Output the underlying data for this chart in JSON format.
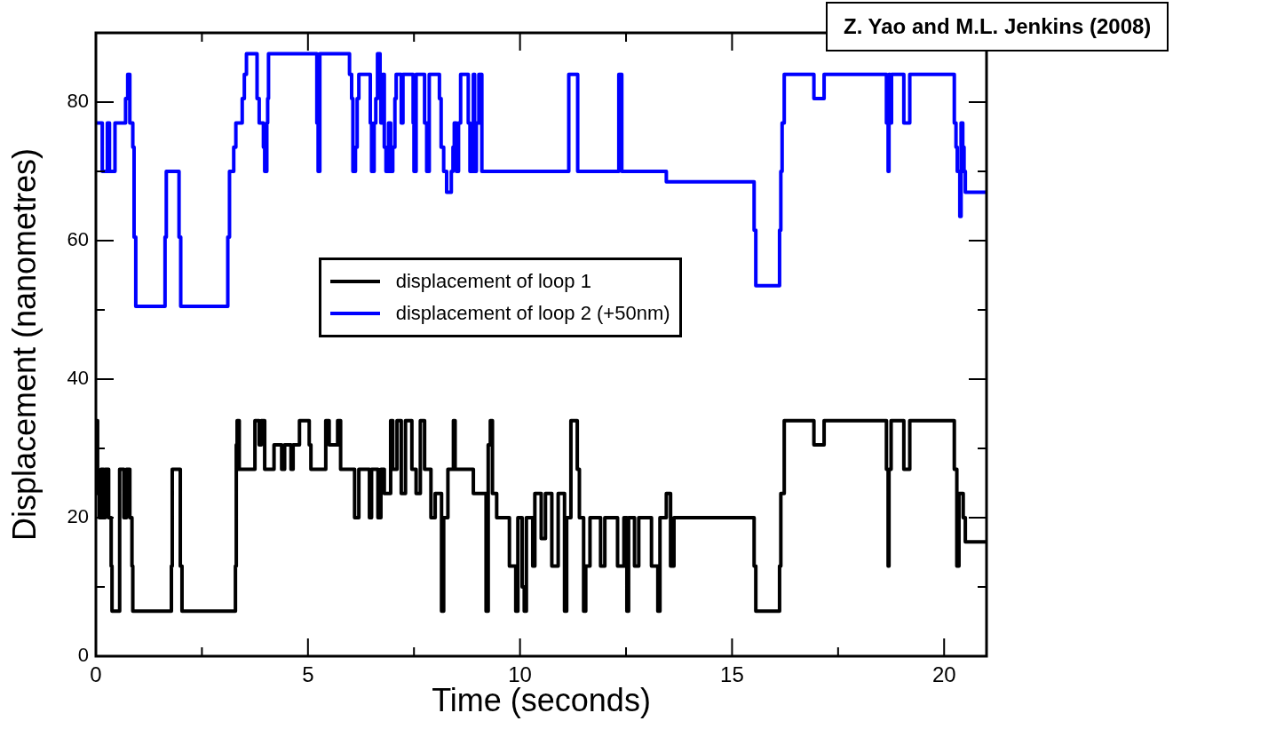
{
  "chart_data": {
    "type": "step",
    "xlabel": "Time (seconds)",
    "ylabel": "Displacement (nanometres)",
    "annotations": [
      "Z. Yao and M.L. Jenkins (2008)"
    ],
    "legend": "center",
    "marker": "none",
    "line_style": "solid",
    "xlim": [
      0,
      21
    ],
    "ylim": [
      0,
      90
    ],
    "xticks": [
      0,
      {
        "value": 2.5,
        "label": null
      },
      5,
      {
        "value": 7.5,
        "label": null
      },
      10,
      {
        "value": 12.5,
        "label": null
      },
      15,
      {
        "value": 17.5,
        "label": null
      },
      20
    ],
    "yticks": [
      0,
      {
        "value": 10,
        "label": null
      },
      20,
      {
        "value": 30,
        "label": null
      },
      40,
      {
        "value": 50,
        "label": null
      },
      60,
      {
        "value": 70,
        "label": null
      },
      80
    ],
    "series": [
      {
        "name": "displacement of loop 1",
        "color": "#000000",
        "x": [
          0,
          0.04,
          0.08,
          0.12,
          0.18,
          0.22,
          0.3,
          0.36,
          0.38,
          0.56,
          0.66,
          0.72,
          0.8,
          0.85,
          0.87,
          1.78,
          1.8,
          1.99,
          2.03,
          3.29,
          3.31,
          3.33,
          3.38,
          3.75,
          3.85,
          3.9,
          3.98,
          4.2,
          4.38,
          4.45,
          4.6,
          4.65,
          4.8,
          5.03,
          5.07,
          5.42,
          5.5,
          5.7,
          5.77,
          6.1,
          6.2,
          6.45,
          6.5,
          6.65,
          6.72,
          6.8,
          6.95,
          7.0,
          7.1,
          7.2,
          7.3,
          7.45,
          7.55,
          7.65,
          7.75,
          7.9,
          8.0,
          8.15,
          8.2,
          8.3,
          8.43,
          8.47,
          8.9,
          9.2,
          9.25,
          9.3,
          9.35,
          9.45,
          9.75,
          9.9,
          9.95,
          10.05,
          10.1,
          10.15,
          10.3,
          10.35,
          10.5,
          10.6,
          10.75,
          10.9,
          11.05,
          11.1,
          11.2,
          11.35,
          11.4,
          11.5,
          11.55,
          11.65,
          11.9,
          12.0,
          12.3,
          12.45,
          12.52,
          12.56,
          12.7,
          12.8,
          13.1,
          13.25,
          13.3,
          13.45,
          13.55,
          13.63,
          15.52,
          15.56,
          16.12,
          16.15,
          16.23,
          16.93,
          17.17,
          18.64,
          18.68,
          18.7,
          18.75,
          19.05,
          19.19,
          20.24,
          20.3,
          20.35,
          20.45,
          20.5,
          21
        ],
        "values": [
          34,
          23.5,
          20,
          27,
          20,
          27,
          20,
          13,
          6.5,
          27,
          20,
          27,
          20,
          13,
          6.5,
          13,
          27,
          13,
          6.5,
          13,
          30.5,
          34,
          27,
          34,
          30.5,
          34,
          27,
          30.5,
          27,
          30.5,
          27,
          30.5,
          34,
          30.5,
          27,
          34,
          30.5,
          34,
          27,
          20,
          27,
          20,
          27,
          20,
          27,
          23.5,
          34,
          27,
          34,
          23.5,
          34,
          27,
          23.5,
          34,
          27,
          20,
          23.5,
          6.5,
          20,
          27,
          34,
          27,
          23.5,
          6.5,
          30.5,
          34,
          23.5,
          20,
          13,
          6.5,
          20,
          10,
          6.5,
          20,
          13,
          23.5,
          17,
          23.5,
          13,
          23.5,
          6.5,
          20,
          34,
          27,
          20,
          6.5,
          13,
          20,
          13,
          20,
          13,
          20,
          6.5,
          20,
          13,
          20,
          13,
          6.5,
          20,
          23.5,
          13,
          20,
          13,
          6.5,
          13,
          23.5,
          34,
          30.5,
          34,
          27,
          13,
          27,
          34,
          27,
          34,
          27,
          13,
          23.5,
          20,
          16.5,
          16.5
        ]
      },
      {
        "name": "displacement of loop 2 (+50nm)",
        "color": "#0000ff",
        "x": [
          0,
          0.15,
          0.27,
          0.32,
          0.45,
          0.7,
          0.75,
          0.8,
          0.87,
          0.9,
          0.94,
          1.63,
          1.66,
          1.96,
          2.0,
          3.11,
          3.15,
          3.25,
          3.3,
          3.45,
          3.5,
          3.55,
          3.8,
          3.85,
          3.95,
          3.98,
          4.03,
          4.05,
          4.07,
          5.21,
          5.24,
          5.28,
          5.98,
          6.03,
          6.06,
          6.12,
          6.16,
          6.2,
          6.47,
          6.5,
          6.56,
          6.6,
          6.64,
          6.7,
          6.72,
          6.76,
          6.8,
          6.84,
          6.9,
          6.95,
          7.0,
          7.05,
          7.08,
          7.2,
          7.24,
          7.48,
          7.5,
          7.55,
          7.75,
          7.8,
          7.86,
          8.1,
          8.14,
          8.2,
          8.27,
          8.38,
          8.42,
          8.45,
          8.5,
          8.55,
          8.6,
          8.78,
          8.82,
          8.9,
          8.93,
          8.97,
          9.03,
          9.1,
          11.15,
          11.36,
          12.33,
          12.4,
          13.45,
          15.52,
          15.56,
          16.12,
          16.15,
          16.18,
          16.23,
          16.93,
          17.17,
          18.64,
          18.68,
          18.7,
          18.72,
          18.76,
          19.05,
          19.19,
          20.24,
          20.28,
          20.31,
          20.37,
          20.4,
          20.44,
          20.47,
          20.5,
          21
        ],
        "values": [
          77,
          70,
          77,
          70,
          77,
          80.5,
          84,
          77,
          73.5,
          60.5,
          50.5,
          60.5,
          70,
          60.5,
          50.5,
          60.5,
          70,
          73.5,
          77,
          80.5,
          84,
          87,
          80.5,
          77,
          73.5,
          70,
          77,
          80.5,
          87,
          77,
          70,
          87,
          84,
          80.5,
          70,
          73.5,
          80.5,
          84,
          77,
          70,
          77,
          80.5,
          87,
          84,
          77,
          84,
          73.5,
          70,
          77,
          70,
          73.5,
          80.5,
          84,
          77,
          84,
          77,
          70,
          84,
          77,
          70,
          84,
          80.5,
          73.5,
          70,
          67,
          70,
          73.5,
          77,
          70,
          77,
          84,
          77,
          70,
          84,
          70,
          77,
          84,
          70,
          84,
          70,
          84,
          70,
          68.5,
          61.5,
          53.5,
          61.5,
          70,
          77,
          84,
          80.5,
          84,
          77,
          70,
          84,
          77,
          84,
          77,
          84,
          77,
          73.5,
          70,
          63.5,
          77,
          73.5,
          70,
          67,
          67
        ]
      }
    ]
  }
}
